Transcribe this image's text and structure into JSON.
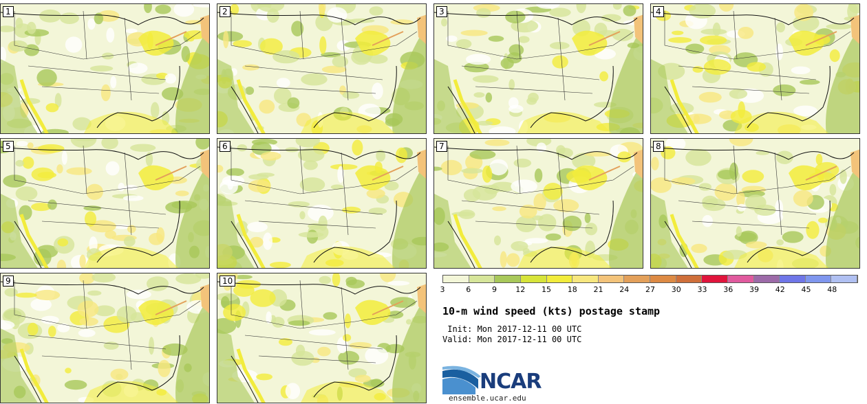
{
  "members": [
    "1",
    "2",
    "3",
    "4",
    "5",
    "6",
    "7",
    "8",
    "9",
    "10"
  ],
  "colorbar": {
    "ticks": [
      "3",
      "6",
      "9",
      "12",
      "15",
      "18",
      "21",
      "24",
      "27",
      "30",
      "33",
      "36",
      "39",
      "42",
      "45",
      "48"
    ],
    "colors": [
      "#f3f6d8",
      "#d6e59a",
      "#a8c85a",
      "#d7e43a",
      "#f2ec3c",
      "#f7e77f",
      "#f3c37a",
      "#e3a05a",
      "#dd8a44",
      "#cf6f3a",
      "#e0143c",
      "#e05a9e",
      "#9c6aa8",
      "#6f76e8",
      "#7f96ee",
      "#b0c0f2"
    ],
    "unit_kts_edges": [
      3,
      6,
      9,
      12,
      15,
      18,
      21,
      24,
      27,
      30,
      33,
      36,
      39,
      42,
      45,
      48
    ]
  },
  "title": "10-m wind speed (kts) postage stamp",
  "init_line": " Init: Mon 2017-12-11 00 UTC",
  "valid_line": "Valid: Mon 2017-12-11 00 UTC",
  "logo_text": "NCAR",
  "website": "ensemble.ucar.edu",
  "colors": {
    "land_base": "#f3f6d8",
    "light_green": "#d6e59a",
    "mid_green": "#a8c85a",
    "yellow": "#f2ec3c",
    "orange": "#e3a05a",
    "white": "#ffffff",
    "brand_blue": "#1a3d7c"
  }
}
